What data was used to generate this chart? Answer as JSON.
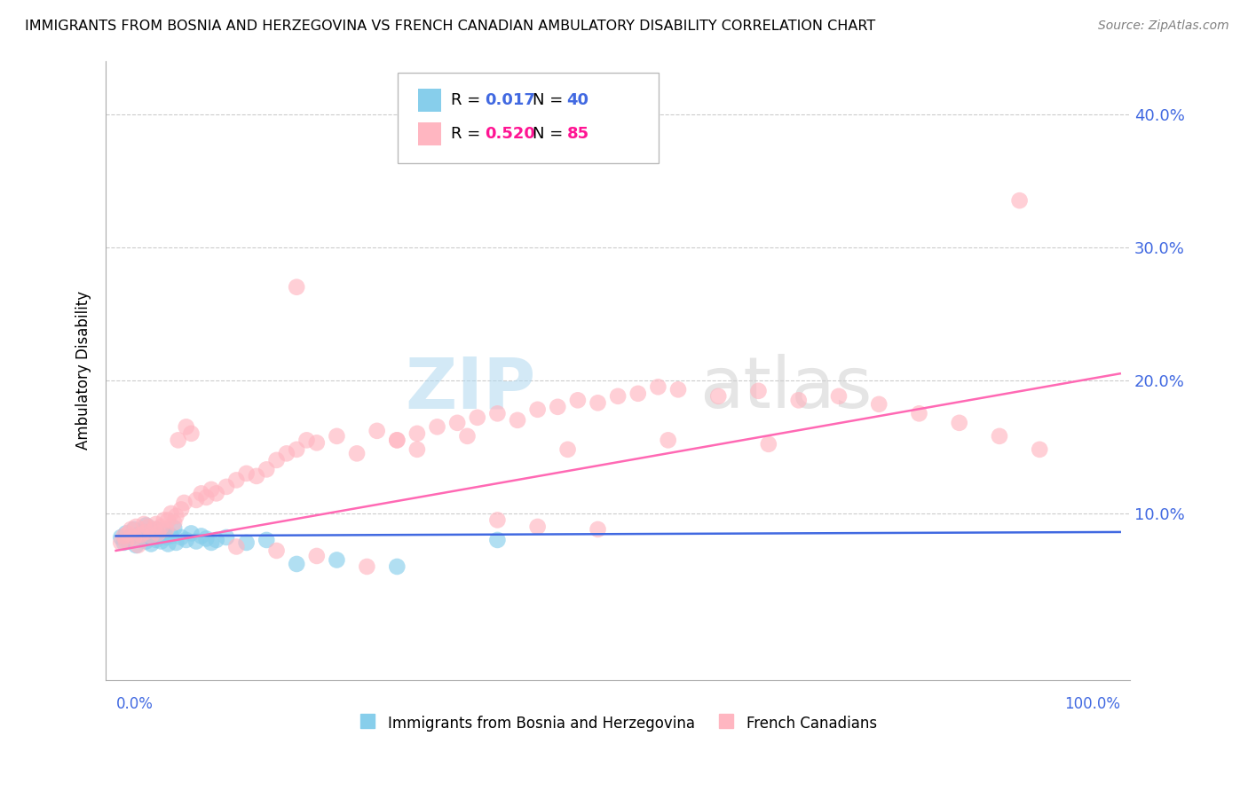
{
  "title": "IMMIGRANTS FROM BOSNIA AND HERZEGOVINA VS FRENCH CANADIAN AMBULATORY DISABILITY CORRELATION CHART",
  "source": "Source: ZipAtlas.com",
  "ylabel": "Ambulatory Disability",
  "legend_blue_r": "0.017",
  "legend_blue_n": "40",
  "legend_pink_r": "0.520",
  "legend_pink_n": "85",
  "legend_label_blue": "Immigrants from Bosnia and Herzegovina",
  "legend_label_pink": "French Canadians",
  "blue_color": "#87CEEB",
  "blue_line_color": "#4169E1",
  "pink_color": "#FFB6C1",
  "pink_line_color": "#FF69B4",
  "axis_label_color": "#4169E1",
  "watermark_text": "ZIPatlas",
  "blue_x": [
    0.005,
    0.008,
    0.01,
    0.012,
    0.015,
    0.018,
    0.02,
    0.022,
    0.025,
    0.028,
    0.03,
    0.03,
    0.032,
    0.035,
    0.038,
    0.04,
    0.04,
    0.042,
    0.045,
    0.048,
    0.05,
    0.052,
    0.055,
    0.058,
    0.06,
    0.065,
    0.07,
    0.075,
    0.08,
    0.085,
    0.09,
    0.095,
    0.1,
    0.11,
    0.13,
    0.15,
    0.18,
    0.22,
    0.28,
    0.38
  ],
  "blue_y": [
    0.082,
    0.078,
    0.085,
    0.079,
    0.083,
    0.088,
    0.076,
    0.084,
    0.08,
    0.086,
    0.079,
    0.091,
    0.083,
    0.077,
    0.085,
    0.08,
    0.088,
    0.083,
    0.079,
    0.086,
    0.082,
    0.077,
    0.083,
    0.089,
    0.078,
    0.082,
    0.08,
    0.085,
    0.079,
    0.083,
    0.081,
    0.078,
    0.08,
    0.082,
    0.078,
    0.08,
    0.062,
    0.065,
    0.06,
    0.08
  ],
  "pink_x": [
    0.005,
    0.008,
    0.01,
    0.012,
    0.015,
    0.018,
    0.02,
    0.022,
    0.025,
    0.028,
    0.03,
    0.032,
    0.035,
    0.038,
    0.04,
    0.042,
    0.045,
    0.048,
    0.05,
    0.052,
    0.055,
    0.058,
    0.06,
    0.062,
    0.065,
    0.068,
    0.07,
    0.075,
    0.08,
    0.085,
    0.09,
    0.095,
    0.1,
    0.11,
    0.12,
    0.13,
    0.14,
    0.15,
    0.16,
    0.17,
    0.18,
    0.19,
    0.2,
    0.22,
    0.24,
    0.26,
    0.28,
    0.3,
    0.32,
    0.34,
    0.36,
    0.38,
    0.4,
    0.42,
    0.44,
    0.46,
    0.48,
    0.5,
    0.52,
    0.54,
    0.56,
    0.6,
    0.64,
    0.68,
    0.72,
    0.76,
    0.8,
    0.84,
    0.88,
    0.92,
    0.18,
    0.28,
    0.38,
    0.42,
    0.48,
    0.3,
    0.35,
    0.45,
    0.55,
    0.65,
    0.12,
    0.16,
    0.2,
    0.25,
    0.9
  ],
  "pink_y": [
    0.078,
    0.083,
    0.079,
    0.085,
    0.088,
    0.082,
    0.09,
    0.076,
    0.084,
    0.092,
    0.086,
    0.09,
    0.083,
    0.088,
    0.092,
    0.085,
    0.09,
    0.095,
    0.088,
    0.095,
    0.1,
    0.093,
    0.098,
    0.155,
    0.103,
    0.108,
    0.165,
    0.16,
    0.11,
    0.115,
    0.112,
    0.118,
    0.115,
    0.12,
    0.125,
    0.13,
    0.128,
    0.133,
    0.14,
    0.145,
    0.148,
    0.155,
    0.153,
    0.158,
    0.145,
    0.162,
    0.155,
    0.16,
    0.165,
    0.168,
    0.172,
    0.175,
    0.17,
    0.178,
    0.18,
    0.185,
    0.183,
    0.188,
    0.19,
    0.195,
    0.193,
    0.188,
    0.192,
    0.185,
    0.188,
    0.182,
    0.175,
    0.168,
    0.158,
    0.148,
    0.27,
    0.155,
    0.095,
    0.09,
    0.088,
    0.148,
    0.158,
    0.148,
    0.155,
    0.152,
    0.075,
    0.072,
    0.068,
    0.06,
    0.335
  ],
  "blue_trend_x": [
    0.0,
    1.0
  ],
  "blue_trend_y": [
    0.083,
    0.086
  ],
  "pink_trend_x": [
    0.0,
    1.0
  ],
  "pink_trend_y": [
    0.072,
    0.205
  ],
  "xlim": [
    -0.01,
    1.01
  ],
  "ylim": [
    -0.025,
    0.44
  ],
  "yticks": [
    0.1,
    0.2,
    0.3,
    0.4
  ],
  "ytick_labels": [
    "10.0%",
    "20.0%",
    "30.0%",
    "40.0%"
  ],
  "xticks": [
    0.0,
    0.1,
    0.2,
    0.3,
    0.4,
    0.5,
    0.6,
    0.7,
    0.8,
    0.9,
    1.0
  ]
}
